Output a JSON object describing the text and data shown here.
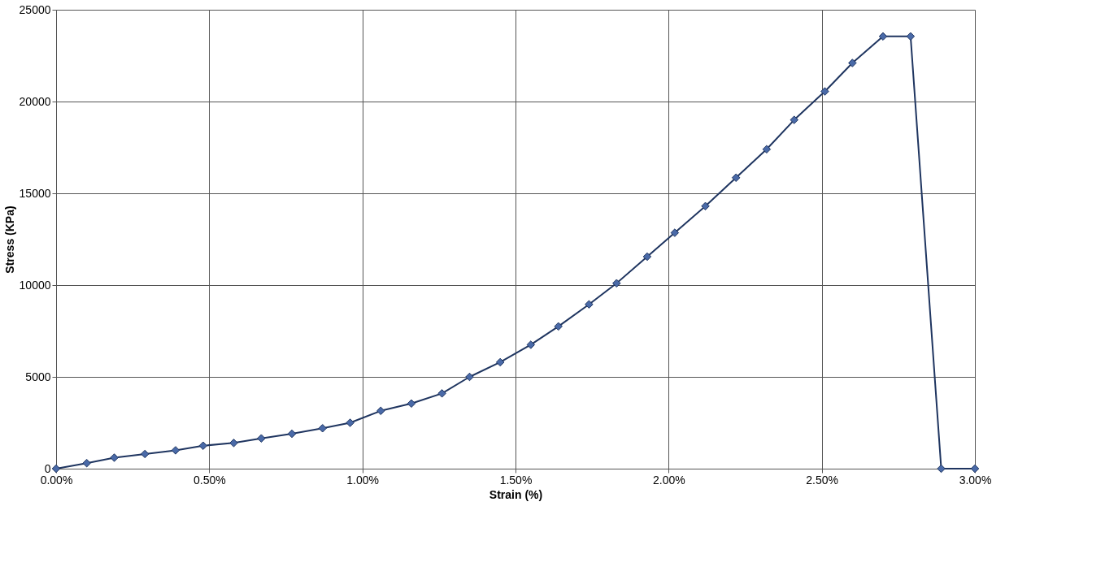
{
  "chart_data": {
    "type": "line",
    "xlabel": "Strain (%)",
    "ylabel": "Stress (KPa)",
    "x": [
      0,
      0.1,
      0.19,
      0.29,
      0.39,
      0.48,
      0.58,
      0.67,
      0.77,
      0.87,
      0.96,
      1.06,
      1.16,
      1.26,
      1.35,
      1.45,
      1.55,
      1.64,
      1.74,
      1.83,
      1.93,
      2.02,
      2.12,
      2.22,
      2.32,
      2.41,
      2.51,
      2.6,
      2.7,
      2.79,
      2.89,
      3.0
    ],
    "series": [
      {
        "color": "#1f3560",
        "values": [
          0,
          300,
          600,
          800,
          1000,
          1250,
          1400,
          1650,
          1900,
          2200,
          2500,
          3150,
          3550,
          4100,
          5000,
          5800,
          6750,
          7750,
          8950,
          10100,
          11550,
          12850,
          14300,
          15850,
          17400,
          19000,
          20550,
          22100,
          23550,
          23550,
          0,
          0
        ]
      }
    ],
    "xlim": [
      0,
      3
    ],
    "xticks": [
      {
        "value": 0,
        "label": "0.00%"
      },
      {
        "value": 0.5,
        "label": "0.50%"
      },
      {
        "value": 1,
        "label": "1.00%"
      },
      {
        "value": 1.5,
        "label": "1.50%"
      },
      {
        "value": 2,
        "label": "2.00%"
      },
      {
        "value": 2.5,
        "label": "2.50%"
      },
      {
        "value": 3,
        "label": "3.00%"
      }
    ],
    "ylim": [
      0,
      25000
    ],
    "yticks": [
      0,
      5000,
      10000,
      15000,
      20000,
      25000
    ],
    "grid": true,
    "marker": "diamond",
    "line_style": "solid"
  }
}
